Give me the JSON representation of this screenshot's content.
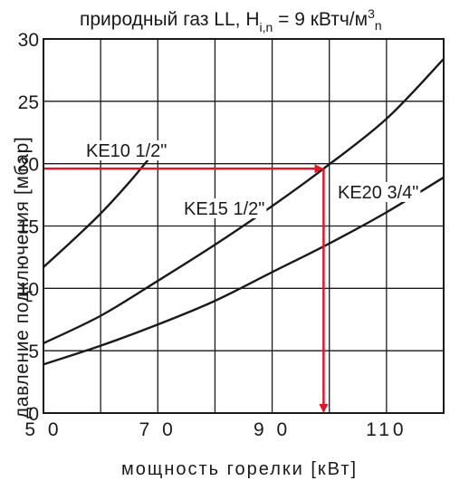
{
  "chart_data": {
    "type": "line",
    "title": "природный газ LL, H",
    "title_sub": "i,n",
    "title_rest": " = 9 кВтч/м",
    "title_sup": "3",
    "title_sub2": "n",
    "xlabel": "мощность горелки  [кВт]",
    "ylabel": "давление подключения [мбар]",
    "xlim": [
      50,
      120
    ],
    "ylim": [
      0,
      30
    ],
    "x_ticks": [
      50,
      70,
      90,
      110
    ],
    "x_tick_labels": [
      "5 0",
      "7 0",
      "9 0",
      "110"
    ],
    "y_ticks": [
      0,
      5,
      10,
      15,
      20,
      25,
      30
    ],
    "y_tick_labels": [
      "0",
      "5",
      "10",
      "15",
      "20",
      "25",
      "30"
    ],
    "grid": true,
    "series": [
      {
        "name": "KE10 1/2\"",
        "x": [
          50,
          55,
          60,
          65,
          69
        ],
        "y": [
          11.7,
          13.8,
          16.0,
          18.5,
          20.7
        ]
      },
      {
        "name": "KE15 1/2\"",
        "x": [
          50,
          60,
          70,
          80,
          90,
          99,
          110,
          120
        ],
        "y": [
          5.6,
          7.8,
          10.6,
          13.5,
          16.6,
          19.6,
          23.6,
          28.4
        ]
      },
      {
        "name": "KE20 3/4\"",
        "x": [
          50,
          60,
          70,
          80,
          90,
          100,
          110,
          120
        ],
        "y": [
          3.9,
          5.4,
          7.1,
          9.0,
          11.3,
          13.6,
          16.1,
          18.9
        ]
      }
    ],
    "annotation": {
      "x": 99,
      "y": 19.6,
      "color": "#e0162b"
    },
    "line_color": "#1a1a1a",
    "grid_color": "#1a1a1a"
  }
}
